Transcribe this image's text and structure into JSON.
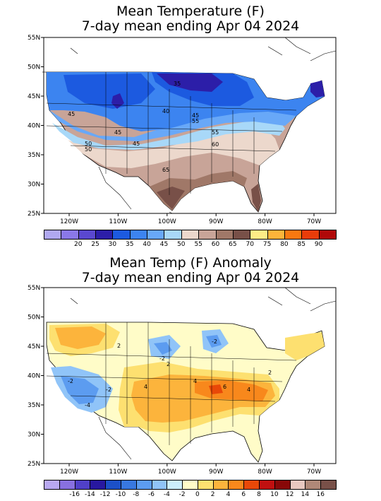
{
  "panel1": {
    "title_line1": "Mean Temperature (F)",
    "title_line2": "7-day mean ending Apr 04 2024",
    "lat_labels": [
      "55N",
      "50N",
      "45N",
      "40N",
      "35N",
      "30N",
      "25N"
    ],
    "lon_labels": [
      "120W",
      "110W",
      "100W",
      "90W",
      "80W",
      "70W"
    ],
    "contour_labels": [
      "35",
      "40",
      "45",
      "50",
      "45",
      "55",
      "60",
      "65",
      "50",
      "55",
      "45",
      "45"
    ],
    "legend_labels": [
      "20",
      "25",
      "30",
      "35",
      "40",
      "45",
      "50",
      "55",
      "60",
      "65",
      "70",
      "75",
      "80",
      "85",
      "90"
    ],
    "legend_colors": [
      "#b0a8f0",
      "#8a78e8",
      "#5a48d0",
      "#2c1ea8",
      "#1c5ae0",
      "#3c84f0",
      "#68a8f8",
      "#a8d8f8",
      "#ecd8cc",
      "#c8a498",
      "#a07868",
      "#785048",
      "#fdec86",
      "#fdb43a",
      "#f87810",
      "#e83c0a",
      "#b00808"
    ]
  },
  "panel2": {
    "title_line1": "Mean Temp (F) Anomaly",
    "title_line2": "7-day mean ending Apr 04 2024",
    "lat_labels": [
      "55N",
      "50N",
      "45N",
      "40N",
      "35N",
      "30N",
      "25N"
    ],
    "lon_labels": [
      "120W",
      "110W",
      "100W",
      "90W",
      "80W",
      "70W"
    ],
    "contour_labels": [
      "2",
      "-2",
      "2",
      "-4",
      "-2",
      "4",
      "4",
      "6",
      "4",
      "2",
      "-2",
      "-2"
    ],
    "legend_labels": [
      "-16",
      "-14",
      "-12",
      "-10",
      "-8",
      "-6",
      "-4",
      "-2",
      "0",
      "2",
      "4",
      "6",
      "8",
      "10",
      "12",
      "14",
      "16"
    ],
    "legend_colors": [
      "#b8a8f0",
      "#8870e0",
      "#5040c8",
      "#2818a0",
      "#1c50c8",
      "#3878e0",
      "#5c9cf0",
      "#90c4f8",
      "#cceefc",
      "#fffcc8",
      "#fde070",
      "#fcb43c",
      "#f8881c",
      "#e84808",
      "#c01010",
      "#880808",
      "#e8c8c0",
      "#b08878",
      "#785048"
    ]
  }
}
